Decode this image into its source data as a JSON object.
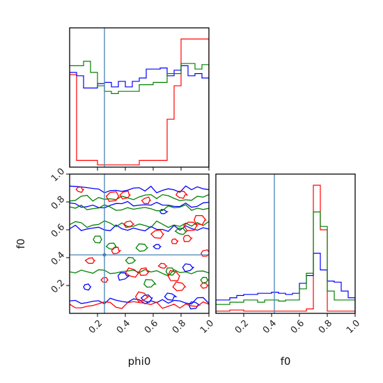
{
  "chart_data": [
    {
      "type": "histogram",
      "panel": "phi0-marginal",
      "xlim": [
        0,
        1
      ],
      "bin_edges": [
        0.0,
        0.05,
        0.1,
        0.15,
        0.2,
        0.25,
        0.3,
        0.35,
        0.4,
        0.45,
        0.5,
        0.55,
        0.6,
        0.65,
        0.7,
        0.75,
        0.8,
        0.85,
        0.9,
        0.95,
        1.0
      ],
      "truth_x": 0.25,
      "series": [
        {
          "color": "#ff0000",
          "counts": [
            0.83,
            0.06,
            0.06,
            0.06,
            0.02,
            0.02,
            0.02,
            0.02,
            0.02,
            0.02,
            0.06,
            0.06,
            0.06,
            0.06,
            0.43,
            0.73,
            1.15,
            1.15,
            1.15,
            1.15
          ]
        },
        {
          "color": "#0000ff",
          "counts": [
            0.85,
            0.82,
            0.71,
            0.71,
            0.75,
            0.76,
            0.72,
            0.77,
            0.72,
            0.77,
            0.8,
            0.88,
            0.88,
            0.89,
            0.82,
            0.87,
            0.91,
            0.82,
            0.84,
            0.8
          ]
        },
        {
          "color": "#008000",
          "counts": [
            0.91,
            0.91,
            0.95,
            0.85,
            0.73,
            0.68,
            0.66,
            0.68,
            0.68,
            0.68,
            0.74,
            0.74,
            0.76,
            0.76,
            0.84,
            0.84,
            0.93,
            0.93,
            0.88,
            0.92
          ]
        }
      ]
    },
    {
      "type": "contour",
      "panel": "phi0-f0-joint",
      "xlabel": "phi0",
      "ylabel": "f0",
      "xlim": [
        0,
        1
      ],
      "ylim": [
        0,
        1
      ],
      "truth_x": 0.25,
      "truth_y": 0.42,
      "x_ticks": [
        "0.2",
        "0.4",
        "0.6",
        "0.8",
        "1.0"
      ],
      "y_ticks": [
        "0.2",
        "0.4",
        "0.6",
        "0.8",
        "1.0"
      ],
      "series": [
        {
          "color": "#0000ff",
          "level_y": [
            0.09,
            0.61,
            0.78,
            0.89
          ],
          "blobs": [
            [
              0.12,
              0.19
            ],
            [
              0.38,
              0.27
            ],
            [
              0.55,
              0.11
            ],
            [
              0.63,
              0.48
            ],
            [
              0.72,
              0.12
            ],
            [
              0.85,
              0.33
            ],
            [
              0.67,
              0.73
            ],
            [
              0.89,
              0.06
            ]
          ]
        },
        {
          "color": "#008000",
          "level_y": [
            0.29,
            0.64,
            0.76,
            0.83
          ],
          "blobs": [
            [
              0.3,
              0.48
            ],
            [
              0.44,
              0.38
            ],
            [
              0.52,
              0.47
            ],
            [
              0.57,
              0.21
            ],
            [
              0.8,
              0.59
            ],
            [
              0.97,
              0.24
            ],
            [
              0.2,
              0.53
            ],
            [
              0.72,
              0.3
            ]
          ]
        },
        {
          "color": "#ff0000",
          "level_y": [
            0.06
          ],
          "blobs": [
            [
              0.07,
              0.89
            ],
            [
              0.15,
              0.38
            ],
            [
              0.25,
              0.24
            ],
            [
              0.31,
              0.84
            ],
            [
              0.33,
              0.45
            ],
            [
              0.4,
              0.85
            ],
            [
              0.42,
              0.64
            ],
            [
              0.55,
              0.81
            ],
            [
              0.52,
              0.12
            ],
            [
              0.53,
              0.3
            ],
            [
              0.63,
              0.57
            ],
            [
              0.67,
              0.34
            ],
            [
              0.75,
              0.27
            ],
            [
              0.75,
              0.52
            ],
            [
              0.79,
              0.19
            ],
            [
              0.8,
              0.85
            ],
            [
              0.84,
              0.54
            ],
            [
              0.87,
              0.63
            ],
            [
              0.97,
              0.43
            ],
            [
              0.97,
              0.2
            ],
            [
              0.93,
              0.67
            ],
            [
              0.45,
              0.29
            ]
          ]
        }
      ]
    },
    {
      "type": "histogram",
      "panel": "f0-marginal",
      "xlabel": "f0",
      "xlim": [
        0,
        1
      ],
      "x_ticks": [
        "0.2",
        "0.4",
        "0.6",
        "0.8",
        "1.0"
      ],
      "bin_edges": [
        0.0,
        0.05,
        0.1,
        0.15,
        0.2,
        0.25,
        0.3,
        0.35,
        0.4,
        0.45,
        0.5,
        0.55,
        0.6,
        0.65,
        0.7,
        0.75,
        0.8,
        0.85,
        0.9,
        0.95,
        1.0
      ],
      "truth_x": 0.42,
      "series": [
        {
          "color": "#ff0000",
          "counts": [
            0.02,
            0.02,
            0.03,
            0.03,
            0.02,
            0.02,
            0.02,
            0.02,
            0.02,
            0.02,
            0.02,
            0.02,
            0.02,
            0.04,
            1.15,
            0.75,
            0.02,
            0.02,
            0.02,
            0.02
          ]
        },
        {
          "color": "#0000ff",
          "counts": [
            0.12,
            0.12,
            0.14,
            0.16,
            0.17,
            0.17,
            0.18,
            0.18,
            0.19,
            0.18,
            0.17,
            0.18,
            0.27,
            0.34,
            0.54,
            0.39,
            0.29,
            0.28,
            0.2,
            0.14
          ]
        },
        {
          "color": "#008000",
          "counts": [
            0.08,
            0.08,
            0.1,
            0.1,
            0.12,
            0.12,
            0.1,
            0.12,
            0.12,
            0.11,
            0.12,
            0.12,
            0.22,
            0.36,
            0.91,
            0.78,
            0.2,
            0.12,
            0.12,
            0.12
          ]
        }
      ]
    }
  ],
  "labels": {
    "phi0": "phi0",
    "f0": "f0"
  },
  "colors": {
    "truth": "#4682b4",
    "red": "#ff0000",
    "blue": "#0000ff",
    "green": "#008000"
  }
}
